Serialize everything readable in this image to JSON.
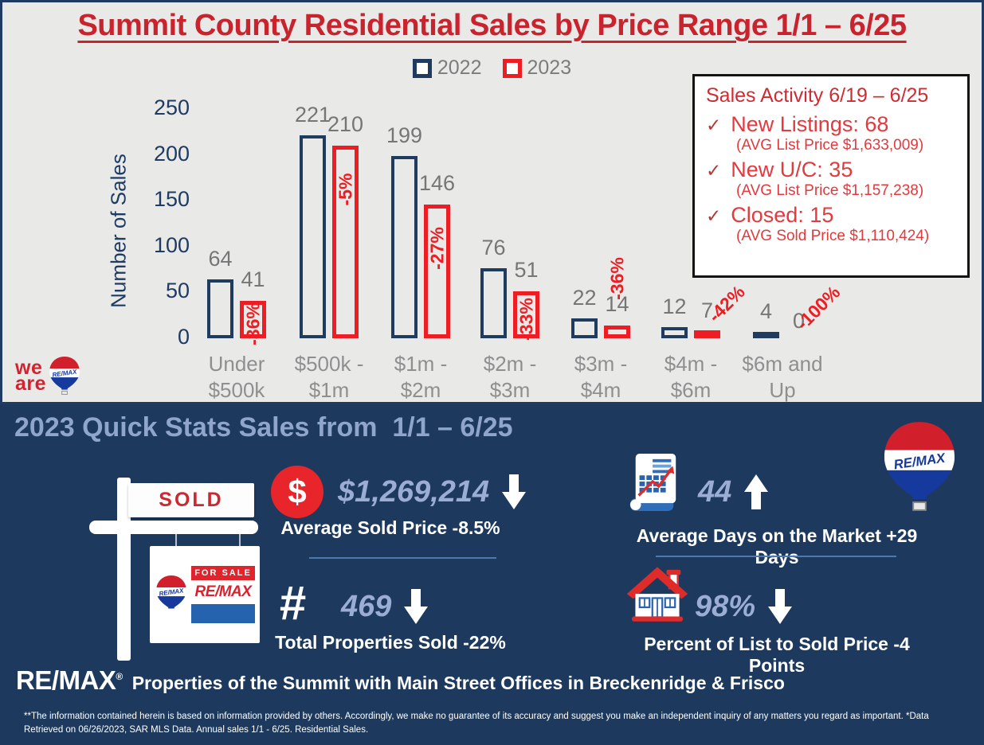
{
  "chart_panel": {
    "title": "Summit County Residential Sales by Price Range 1/1 – 6/25",
    "sales_activity": {
      "title": "Sales Activity 6/19 – 6/25",
      "items": [
        {
          "check": "✓",
          "label": "New Listings: 68",
          "sub": "(AVG List Price $1,633,009)"
        },
        {
          "check": "✓",
          "label": "New U/C: 35",
          "sub": "(AVG List Price $1,157,238)"
        },
        {
          "check": "✓",
          "label": "Closed: 15",
          "sub": "(AVG Sold Price $1,110,424)"
        }
      ]
    },
    "we_are": {
      "line1": "we",
      "line2": "are"
    }
  },
  "chart_data": {
    "type": "bar",
    "title": "Summit County Residential Sales by Price Range 1/1 – 6/25",
    "xlabel": "",
    "ylabel": "Number of Sales",
    "ylim": [
      0,
      250
    ],
    "yticks": [
      0,
      50,
      100,
      150,
      200,
      250
    ],
    "grid": false,
    "legend_position": "top-center",
    "categories": [
      "Under $500k",
      "$500k - $1m",
      "$1m - $2m",
      "$2m - $3m",
      "$3m - $4m",
      "$4m - $6m",
      "$6m and Up"
    ],
    "category_label_lines": [
      [
        "Under",
        "$500k"
      ],
      [
        "$500k -",
        "$1m"
      ],
      [
        "$1m -",
        "$2m"
      ],
      [
        "$2m -",
        "$3m"
      ],
      [
        "$3m -",
        "$4m"
      ],
      [
        "$4m -",
        "$6m"
      ],
      [
        "$6m and",
        "Up"
      ]
    ],
    "series": [
      {
        "name": "2022",
        "color": "#1f3b5f",
        "values": [
          64,
          221,
          199,
          76,
          22,
          12,
          4
        ]
      },
      {
        "name": "2023",
        "color": "#ee1c23",
        "values": [
          41,
          210,
          146,
          51,
          14,
          7,
          0
        ]
      }
    ],
    "pct_change_labels": [
      "-36%",
      "-5%",
      "-27%",
      "-33%",
      "-36%",
      "-42%",
      "-100%"
    ],
    "pct_label_placement": [
      "inside-center",
      "inside-top",
      "inside-top",
      "inside-center",
      "above-vertical",
      "above-diagonal",
      "above-diagonal"
    ]
  },
  "quick_stats": {
    "title": "2023 Quick Stats Sales from  1/1 – 6/25",
    "stats": [
      {
        "icon": "dollar-icon",
        "value": "$1,269,214",
        "trend": "down",
        "label": "Average Sold Price -8.5%",
        "divider": true
      },
      {
        "icon": "chart-scroll-icon",
        "value": "44",
        "trend": "up",
        "label": "Average Days on the Market +29 Days",
        "divider": true
      },
      {
        "icon": "hash-icon",
        "value": "469",
        "trend": "down",
        "label": "Total Properties Sold -22%",
        "divider": false
      },
      {
        "icon": "house-icon",
        "value": "98%",
        "trend": "down",
        "label": "Percent of List to Sold Price -4 Points",
        "divider": false
      }
    ],
    "sold_sign": {
      "rider": "SOLD",
      "banner": "FOR SALE",
      "brand": "RE/MAX"
    },
    "balloon_brand": "RE/MAX",
    "brand_line": {
      "brand": "RE/MAX",
      "reg": "®",
      "text": "Properties of the Summit with Main Street Offices in Breckenridge & Frisco"
    },
    "disclaimer": "**The information contained herein is based on information provided by others. Accordingly, we make no guarantee of its accuracy and suggest you make an independent inquiry of any matters you regard as important. *Data Retrieved on 06/26/2023, SAR MLS Data. Annual sales 1/1 - 6/25. Residential Sales."
  },
  "colors": {
    "title_red": "#c9232e",
    "bar_navy": "#1f3b5f",
    "bar_red": "#ee1c23",
    "panel_navy": "#1d3a5e",
    "stat_blue": "#9cadd3",
    "heading_blue": "#8fa5cb",
    "value_gray": "#767676"
  }
}
